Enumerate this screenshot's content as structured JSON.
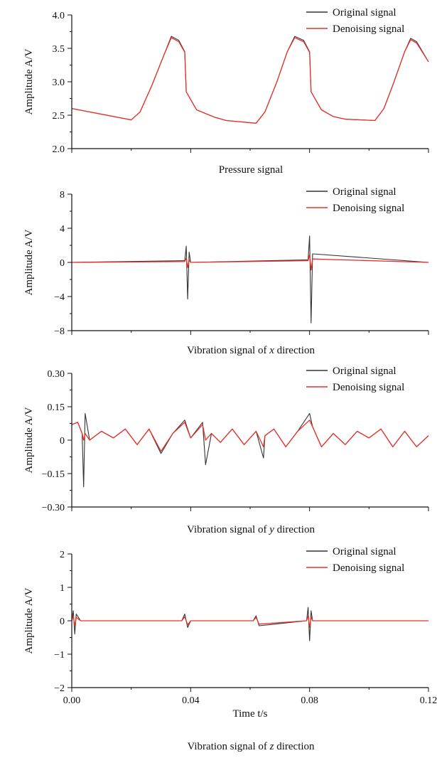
{
  "colors": {
    "original": "#333333",
    "denoised": "#e8302a",
    "axis": "#111111"
  },
  "legend": {
    "original_label": "Original signal",
    "denoised_label": "Denoising signal"
  },
  "shared_x": {
    "label": "Time t/s",
    "lim": [
      0,
      0.12
    ],
    "ticks": [
      "0.00",
      "0.04",
      "0.08",
      "0.12"
    ]
  },
  "chart_data": [
    {
      "type": "line",
      "caption": "Pressure signal",
      "ylabel": "Amplitude A/V",
      "ylim": [
        2.0,
        4.0
      ],
      "yticks": [
        "2.0",
        "2.5",
        "3.0",
        "3.5",
        "4.0"
      ],
      "legend_position": "top-right",
      "series": [
        {
          "name": "Original signal",
          "x": [
            0,
            0.02,
            0.023,
            0.027,
            0.031,
            0.0335,
            0.036,
            0.038,
            0.0385,
            0.042,
            0.048,
            0.052,
            0.062,
            0.065,
            0.069,
            0.0725,
            0.075,
            0.078,
            0.08,
            0.0805,
            0.084,
            0.088,
            0.092,
            0.102,
            0.105,
            0.108,
            0.11,
            0.112,
            0.114,
            0.116,
            0.12
          ],
          "y": [
            2.6,
            2.43,
            2.55,
            2.95,
            3.4,
            3.68,
            3.62,
            3.45,
            2.85,
            2.58,
            2.47,
            2.42,
            2.38,
            2.55,
            3.0,
            3.45,
            3.68,
            3.62,
            3.45,
            2.85,
            2.58,
            2.48,
            2.44,
            2.42,
            2.6,
            2.95,
            3.2,
            3.45,
            3.65,
            3.6,
            3.3
          ]
        },
        {
          "name": "Denoising signal",
          "x": [
            0,
            0.02,
            0.023,
            0.027,
            0.031,
            0.0335,
            0.036,
            0.038,
            0.0385,
            0.042,
            0.048,
            0.052,
            0.062,
            0.065,
            0.069,
            0.0725,
            0.075,
            0.078,
            0.08,
            0.0805,
            0.084,
            0.088,
            0.092,
            0.102,
            0.105,
            0.108,
            0.11,
            0.112,
            0.114,
            0.116,
            0.12
          ],
          "y": [
            2.6,
            2.43,
            2.55,
            2.95,
            3.4,
            3.66,
            3.6,
            3.44,
            2.85,
            2.58,
            2.47,
            2.42,
            2.38,
            2.55,
            3.0,
            3.45,
            3.66,
            3.6,
            3.44,
            2.85,
            2.58,
            2.48,
            2.44,
            2.42,
            2.6,
            2.95,
            3.2,
            3.45,
            3.63,
            3.58,
            3.3
          ]
        }
      ]
    },
    {
      "type": "line",
      "caption_parts": [
        "Vibration signal of ",
        "x",
        " direction"
      ],
      "ylabel": "Amplitude A/V",
      "ylim": [
        -8,
        8
      ],
      "yticks": [
        "−8",
        "−4",
        "0",
        "4",
        "8"
      ],
      "legend_position": "top-right",
      "series": [
        {
          "name": "Original signal",
          "x": [
            0,
            0.038,
            0.0385,
            0.039,
            0.0395,
            0.04,
            0.0795,
            0.08,
            0.0805,
            0.081,
            0.12
          ],
          "y": [
            0,
            0.2,
            1.9,
            -4.3,
            1.2,
            0,
            0.3,
            3.1,
            -7.1,
            1.0,
            0
          ]
        },
        {
          "name": "Denoising signal",
          "x": [
            0,
            0.038,
            0.0385,
            0.039,
            0.0395,
            0.04,
            0.0795,
            0.08,
            0.0805,
            0.081,
            0.12
          ],
          "y": [
            0,
            0.1,
            0.5,
            -0.6,
            0.3,
            0,
            0.2,
            0.9,
            -0.9,
            0.4,
            0
          ]
        }
      ]
    },
    {
      "type": "line",
      "caption_parts": [
        "Vibration signal of ",
        "y",
        " direction"
      ],
      "ylabel": "Amplitude A/V",
      "ylim": [
        -0.3,
        0.3
      ],
      "yticks": [
        "−0.30",
        "−0.15",
        "0",
        "0.15",
        "0.30"
      ],
      "legend_position": "top-right",
      "series": [
        {
          "name": "Original signal",
          "x": [
            0,
            0.002,
            0.0035,
            0.004,
            0.0045,
            0.006,
            0.01,
            0.014,
            0.018,
            0.022,
            0.026,
            0.03,
            0.034,
            0.038,
            0.04,
            0.044,
            0.045,
            0.047,
            0.05,
            0.054,
            0.058,
            0.062,
            0.0645,
            0.065,
            0.068,
            0.072,
            0.076,
            0.08,
            0.081,
            0.084,
            0.088,
            0.092,
            0.096,
            0.1,
            0.104,
            0.108,
            0.112,
            0.116,
            0.12
          ],
          "y": [
            0.07,
            0.08,
            0.03,
            -0.21,
            0.12,
            0.0,
            0.04,
            0.01,
            0.05,
            -0.02,
            0.05,
            -0.06,
            0.03,
            0.09,
            0.01,
            0.08,
            -0.11,
            0.03,
            -0.01,
            0.05,
            -0.02,
            0.04,
            -0.08,
            0.02,
            0.05,
            -0.03,
            0.04,
            0.12,
            0.06,
            -0.03,
            0.03,
            -0.02,
            0.04,
            0.01,
            0.05,
            -0.03,
            0.04,
            -0.03,
            0.02
          ]
        },
        {
          "name": "Denoising signal",
          "x": [
            0,
            0.002,
            0.0035,
            0.004,
            0.0045,
            0.006,
            0.01,
            0.014,
            0.018,
            0.022,
            0.026,
            0.03,
            0.034,
            0.038,
            0.04,
            0.044,
            0.045,
            0.047,
            0.05,
            0.054,
            0.058,
            0.062,
            0.0645,
            0.065,
            0.068,
            0.072,
            0.076,
            0.08,
            0.081,
            0.084,
            0.088,
            0.092,
            0.096,
            0.1,
            0.104,
            0.108,
            0.112,
            0.116,
            0.12
          ],
          "y": [
            0.07,
            0.08,
            0.03,
            0.0,
            0.03,
            0.0,
            0.04,
            0.01,
            0.05,
            -0.02,
            0.05,
            -0.05,
            0.03,
            0.08,
            0.01,
            0.07,
            0.0,
            0.03,
            -0.01,
            0.05,
            -0.02,
            0.04,
            -0.03,
            0.02,
            0.05,
            -0.03,
            0.04,
            0.09,
            0.06,
            -0.03,
            0.03,
            -0.02,
            0.04,
            0.01,
            0.05,
            -0.03,
            0.04,
            -0.03,
            0.02
          ]
        }
      ]
    },
    {
      "type": "line",
      "caption_parts": [
        "Vibration signal of ",
        "z",
        " direction"
      ],
      "ylabel": "Amplitude A/V",
      "ylim": [
        -2,
        2
      ],
      "yticks": [
        "−2",
        "−1",
        "0",
        "1",
        "2"
      ],
      "legend_position": "top-right",
      "series": [
        {
          "name": "Original signal",
          "x": [
            0,
            0.0005,
            0.001,
            0.0015,
            0.003,
            0.037,
            0.038,
            0.039,
            0.04,
            0.061,
            0.062,
            0.063,
            0.079,
            0.0795,
            0.08,
            0.0805,
            0.081,
            0.12
          ],
          "y": [
            0,
            0.3,
            -0.4,
            0.2,
            0,
            0,
            0.2,
            -0.2,
            0,
            0,
            0.15,
            -0.15,
            0,
            0.4,
            -0.6,
            0.3,
            0,
            0
          ]
        },
        {
          "name": "Denoising signal",
          "x": [
            0,
            0.0005,
            0.001,
            0.0015,
            0.003,
            0.037,
            0.038,
            0.039,
            0.04,
            0.061,
            0.062,
            0.063,
            0.079,
            0.0795,
            0.08,
            0.0805,
            0.081,
            0.12
          ],
          "y": [
            0,
            0.15,
            -0.15,
            0.1,
            0,
            0,
            0.12,
            -0.12,
            0,
            0,
            0.1,
            -0.1,
            0,
            0.15,
            -0.2,
            0.12,
            0,
            0
          ]
        }
      ]
    }
  ]
}
